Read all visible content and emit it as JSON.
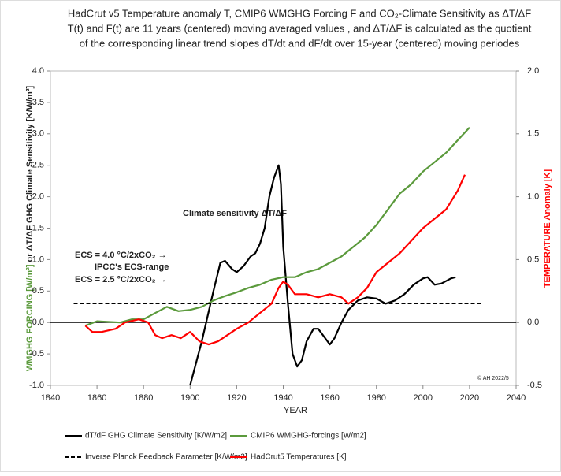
{
  "chart_data": {
    "type": "line",
    "title_lines": [
      "HadCrut v5 Temperature anomaly T, CMIP6 WMGHG Forcing F and CO₂-Climate Sensitivity as ΔT/ΔF",
      "T(t) and F(t) are 11 years (centered) moving averaged values , and ΔT/ΔF is calculated as the quotient",
      "of the corresponding linear trend slopes dT/dt and dF/dt over 15-year (centered) moving periodes"
    ],
    "x_label": "YEAR",
    "y_label_parts": [
      "WMGHG FORCING [W/m²]",
      " or ΔT/ΔF GHG Climate Sensitivity  [K/W/m²]"
    ],
    "y2_label": "TEMPERATURE Anomaly [K]",
    "annotations": [
      "Climate sensitivity ΔT/ΔF",
      "ECS = 4.0 °C/2xCO₂ →",
      "IPCC's ECS-range",
      "ECS = 2.5 °C/2xCO₂ →",
      "© AH 2022/5"
    ],
    "xlim": [
      1840,
      2040
    ],
    "xticks": [
      1840,
      1860,
      1880,
      1900,
      1920,
      1940,
      1960,
      1980,
      2000,
      2020,
      2040
    ],
    "ylim": [
      -1.0,
      4.0
    ],
    "yticks": [
      {
        "value": -1.0,
        "label": "-1.0"
      },
      {
        "value": -0.5,
        "label": "-0.5"
      },
      {
        "value": 0,
        "label": "0.0"
      },
      {
        "value": 0.5,
        "label": "0.5"
      },
      {
        "value": 1.0,
        "label": "1.0"
      },
      {
        "value": 1.5,
        "label": "1.5"
      },
      {
        "value": 2.0,
        "label": "2.0"
      },
      {
        "value": 2.5,
        "label": "2.5"
      },
      {
        "value": 3.0,
        "label": "3.0"
      },
      {
        "value": 3.5,
        "label": "3.5"
      },
      {
        "value": 4.0,
        "label": "4.0"
      }
    ],
    "y2lim": [
      -0.5,
      2.0
    ],
    "y2ticks": [
      {
        "value": -0.5,
        "label": "-0.5"
      },
      {
        "value": 0,
        "label": "0.0"
      },
      {
        "value": 0.5,
        "label": "0.5"
      },
      {
        "value": 1.0,
        "label": "1.0"
      },
      {
        "value": 1.5,
        "label": "1.5"
      },
      {
        "value": 2.0,
        "label": "2.0"
      }
    ],
    "series": [
      {
        "name": "dT/dF GHG Climate Sensitivity  [K/W/m2]",
        "color": "#000000",
        "x": [
          1900,
          1905,
          1910,
          1913,
          1915,
          1918,
          1920,
          1923,
          1926,
          1928,
          1930,
          1932,
          1934,
          1936,
          1938,
          1939,
          1940,
          1942,
          1944,
          1946,
          1948,
          1950,
          1953,
          1955,
          1958,
          1960,
          1962,
          1965,
          1968,
          1972,
          1976,
          1980,
          1984,
          1988,
          1992,
          1996,
          2000,
          2002,
          2005,
          2008,
          2012,
          2014
        ],
        "values": [
          -1.0,
          -0.3,
          0.5,
          0.95,
          0.98,
          0.85,
          0.8,
          0.9,
          1.05,
          1.1,
          1.25,
          1.5,
          2.0,
          2.3,
          2.5,
          2.2,
          1.2,
          0.3,
          -0.5,
          -0.7,
          -0.6,
          -0.3,
          -0.1,
          -0.1,
          -0.25,
          -0.35,
          -0.25,
          0.0,
          0.2,
          0.35,
          0.4,
          0.38,
          0.3,
          0.35,
          0.45,
          0.6,
          0.7,
          0.72,
          0.6,
          0.62,
          0.7,
          0.72
        ]
      },
      {
        "name": "CMIP6 WMGHG-forcings [W/m2]",
        "color": "#5b9a3c",
        "x": [
          1855,
          1860,
          1870,
          1875,
          1880,
          1885,
          1890,
          1895,
          1900,
          1905,
          1910,
          1915,
          1920,
          1925,
          1930,
          1935,
          1940,
          1945,
          1950,
          1955,
          1960,
          1965,
          1970,
          1975,
          1980,
          1985,
          1990,
          1995,
          2000,
          2005,
          2010,
          2015,
          2020
        ],
        "values": [
          -0.05,
          0.02,
          0.0,
          0.05,
          0.05,
          0.15,
          0.25,
          0.18,
          0.2,
          0.25,
          0.35,
          0.42,
          0.48,
          0.55,
          0.6,
          0.68,
          0.72,
          0.72,
          0.8,
          0.85,
          0.95,
          1.05,
          1.2,
          1.35,
          1.55,
          1.8,
          2.05,
          2.2,
          2.4,
          2.55,
          2.7,
          2.9,
          3.1
        ]
      },
      {
        "name": "Inverse Planck Feedback Parameter [K/W/m2]",
        "color": "#000000",
        "dashed": true,
        "x": [
          1850,
          2025
        ],
        "values": [
          0.3,
          0.3
        ]
      },
      {
        "name": "HadCrut5 Temperatures [K]",
        "color": "#ff0000",
        "axis": "y2",
        "x": [
          1855,
          1858,
          1862,
          1868,
          1872,
          1878,
          1882,
          1885,
          1888,
          1892,
          1896,
          1900,
          1904,
          1908,
          1912,
          1916,
          1920,
          1925,
          1930,
          1935,
          1938,
          1940,
          1942,
          1945,
          1950,
          1955,
          1960,
          1965,
          1968,
          1972,
          1976,
          1980,
          1985,
          1990,
          1995,
          2000,
          2005,
          2010,
          2015,
          2018
        ],
        "values": [
          -0.025,
          -0.075,
          -0.075,
          -0.05,
          0,
          0.025,
          0,
          -0.1,
          -0.125,
          -0.1,
          -0.125,
          -0.075,
          -0.15,
          -0.175,
          -0.15,
          -0.1,
          -0.05,
          0,
          0.075,
          0.15,
          0.275,
          0.325,
          0.3,
          0.225,
          0.225,
          0.2,
          0.225,
          0.2,
          0.15,
          0.2,
          0.275,
          0.4,
          0.475,
          0.55,
          0.65,
          0.75,
          0.825,
          0.9,
          1.05,
          1.175
        ]
      }
    ]
  }
}
